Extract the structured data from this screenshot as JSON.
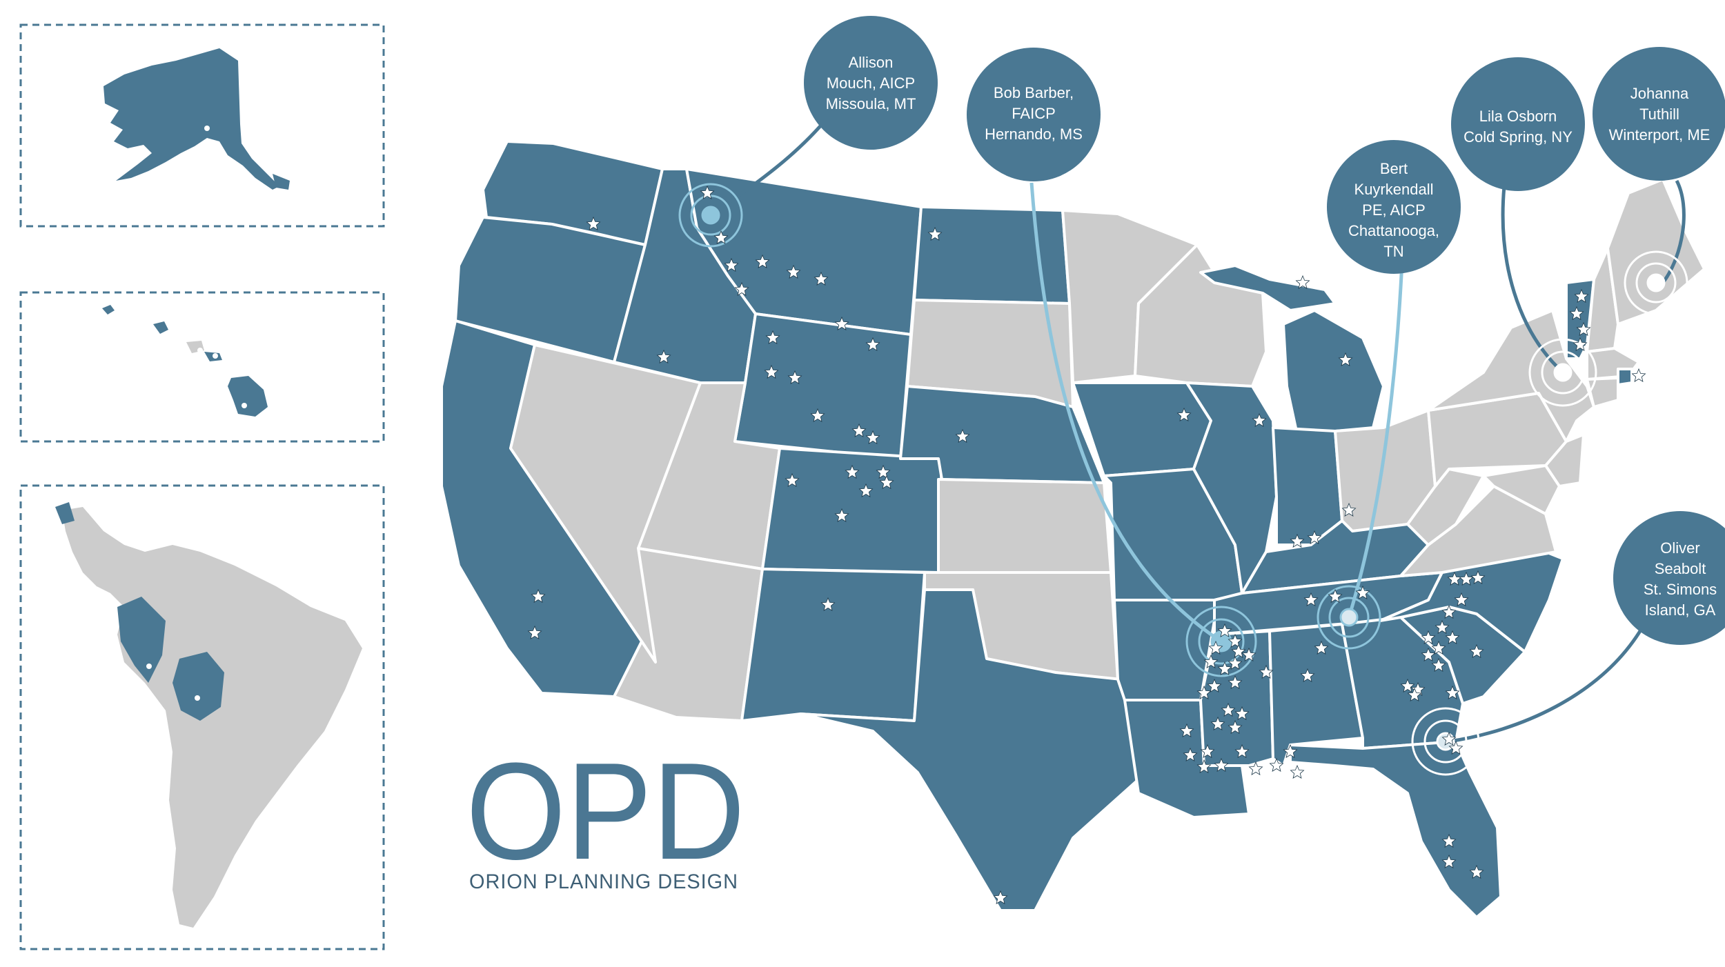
{
  "colors": {
    "active_state": "#4a7893",
    "inactive_state": "#cccccc",
    "bubble": "#4a7893",
    "border": "#ffffff",
    "connector": "#8ec5dc",
    "inset_frame": "#4a7893",
    "logo": "#4b7793"
  },
  "logo": {
    "monogram": "OPD",
    "name": "ORION PLANNING DESIGN"
  },
  "insets": [
    {
      "name": "alaska",
      "label": ""
    },
    {
      "name": "hawaii",
      "label": ""
    },
    {
      "name": "latin-america",
      "label": ""
    }
  ],
  "offices": [
    {
      "id": "allison",
      "lines": [
        "Allison",
        "Mouch, AICP",
        "Missoula, MT"
      ]
    },
    {
      "id": "bob",
      "lines": [
        "Bob Barber,",
        "FAICP",
        "Hernando, MS"
      ]
    },
    {
      "id": "bert",
      "lines": [
        "Bert",
        "Kuyrkendall",
        "PE, AICP",
        "Chattanooga,",
        "TN"
      ]
    },
    {
      "id": "lila",
      "lines": [
        "Lila Osborn",
        "Cold Spring, NY"
      ]
    },
    {
      "id": "johanna",
      "lines": [
        "Johanna",
        "Tuthill",
        "Winterport, ME"
      ]
    },
    {
      "id": "oliver",
      "lines": [
        "Oliver",
        "Seabolt",
        "St. Simons",
        "Island, GA"
      ]
    }
  ],
  "legend": {
    "marker_icon": "star-icon",
    "office_icon": "target-ring-icon"
  }
}
